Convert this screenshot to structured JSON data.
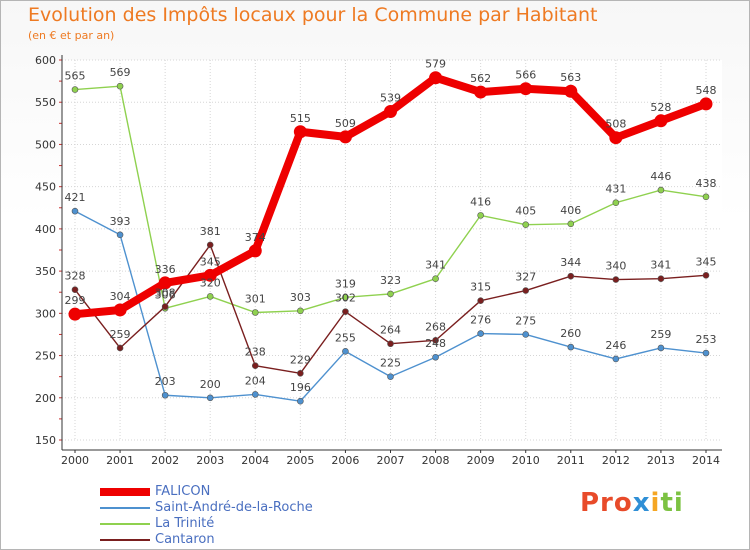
{
  "header": {
    "title": "Evolution des Impôts locaux pour la Commune par Habitant",
    "subtitle": "(en € et par an)"
  },
  "logo": {
    "text": "Proxiti",
    "parts": [
      "Pro",
      "x",
      "i",
      "ti"
    ]
  },
  "chart_data": {
    "type": "line",
    "title": "Evolution des Impôts locaux pour la Commune par Habitant",
    "subtitle": "(en € et par an)",
    "xlabel": "",
    "ylabel": "",
    "ylim": [
      150,
      600
    ],
    "yticks": [
      150,
      200,
      250,
      300,
      350,
      400,
      450,
      500,
      550,
      600
    ],
    "categories": [
      "2000",
      "2001",
      "2002",
      "2003",
      "2004",
      "2005",
      "2006",
      "2007",
      "2008",
      "2009",
      "2010",
      "2011",
      "2012",
      "2013",
      "2014"
    ],
    "grid": true,
    "legend_position": "bottom-left",
    "series": [
      {
        "name": "FALICON",
        "color": "#ee0000",
        "emphasis": true,
        "values": [
          299,
          304,
          336,
          345,
          374,
          515,
          509,
          539,
          579,
          562,
          566,
          563,
          508,
          528,
          548
        ]
      },
      {
        "name": "Saint-André-de-la-Roche",
        "color": "#4e91cf",
        "emphasis": false,
        "values": [
          421,
          393,
          203,
          200,
          204,
          196,
          255,
          225,
          248,
          276,
          275,
          260,
          246,
          259,
          253
        ]
      },
      {
        "name": "La Trinité",
        "color": "#8fd14f",
        "emphasis": false,
        "values": [
          565,
          569,
          306,
          320,
          301,
          303,
          319,
          323,
          341,
          416,
          405,
          406,
          431,
          446,
          438
        ]
      },
      {
        "name": "Cantaron",
        "color": "#7a1f1f",
        "emphasis": false,
        "values": [
          328,
          259,
          308,
          381,
          238,
          229,
          302,
          264,
          268,
          315,
          327,
          344,
          340,
          341,
          345
        ]
      }
    ]
  }
}
